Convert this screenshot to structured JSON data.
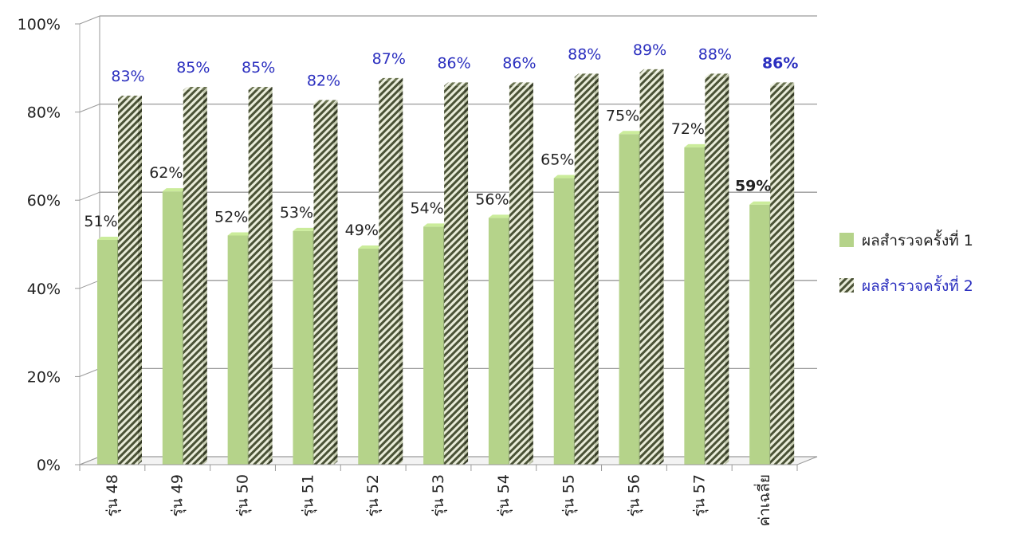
{
  "chart_data": {
    "type": "bar",
    "categories": [
      "รุ่น 48",
      "รุ่น 49",
      "รุ่น 50",
      "รุ่น 51",
      "รุ่น 52",
      "รุ่น 53",
      "รุ่น 54",
      "รุ่น 55",
      "รุ่น 56",
      "รุ่น 57",
      "ค่าเฉลี่ย"
    ],
    "series": [
      {
        "name": "ผลสำรวจครั้งที่ 1",
        "values": [
          51,
          62,
          52,
          53,
          49,
          54,
          56,
          65,
          75,
          72,
          59
        ],
        "labels": [
          "51%",
          "62%",
          "52%",
          "53%",
          "49%",
          "54%",
          "56%",
          "65%",
          "75%",
          "72%",
          "59%"
        ],
        "color": "#b5d38a",
        "label_color": "#222222"
      },
      {
        "name": "ผลสำรวจครั้งที่ 2",
        "values": [
          83,
          85,
          85,
          82,
          87,
          86,
          86,
          88,
          89,
          88,
          86
        ],
        "labels": [
          "83%",
          "85%",
          "85%",
          "82%",
          "87%",
          "86%",
          "86%",
          "88%",
          "89%",
          "88%",
          "86%"
        ],
        "color": "#9aa07a",
        "pattern": "hatched",
        "label_color": "#2b2fbf"
      }
    ],
    "yticks": [
      "0%",
      "20%",
      "40%",
      "60%",
      "80%",
      "100%"
    ],
    "ylim": [
      0,
      100
    ],
    "grid": true,
    "legend_position": "right",
    "bold_category": "ค่าเฉลี่ย",
    "title": "",
    "xlabel": "",
    "ylabel": ""
  }
}
